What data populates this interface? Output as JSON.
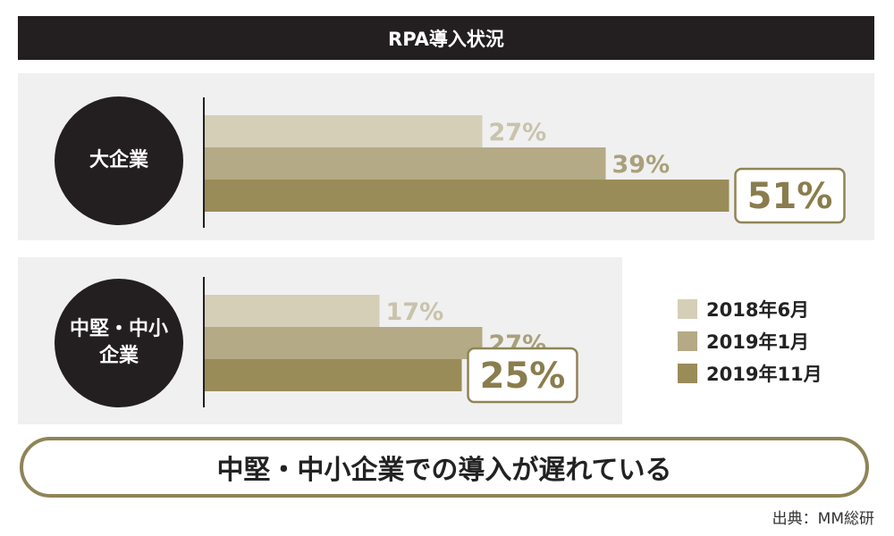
{
  "title": "RPA導入状況",
  "colors": {
    "series": [
      "#d5cfb8",
      "#b4aa86",
      "#9a8c58"
    ],
    "highlight_border": "#8f8456",
    "label_light": "#c9c3ac",
    "label_mid": "#a9a07c",
    "label_dark": "#8a7d4d"
  },
  "chart_data": {
    "type": "bar",
    "orientation": "horizontal",
    "categories": [
      "大企業",
      "中堅・中小企業"
    ],
    "category_display": [
      [
        "大企業"
      ],
      [
        "中堅・中小",
        "企業"
      ]
    ],
    "series": [
      {
        "name": "2018年6月",
        "values": [
          27,
          17
        ]
      },
      {
        "name": "2019年1月",
        "values": [
          39,
          27
        ]
      },
      {
        "name": "2019年11月",
        "values": [
          51,
          25
        ]
      }
    ],
    "value_labels": [
      [
        "27%",
        "39%",
        "51%"
      ],
      [
        "17%",
        "27%",
        "25%"
      ]
    ],
    "unit": "%",
    "legend_position": "right"
  },
  "conclusion": "中堅・中小企業での導入が遅れている",
  "source": "出典：MM総研"
}
